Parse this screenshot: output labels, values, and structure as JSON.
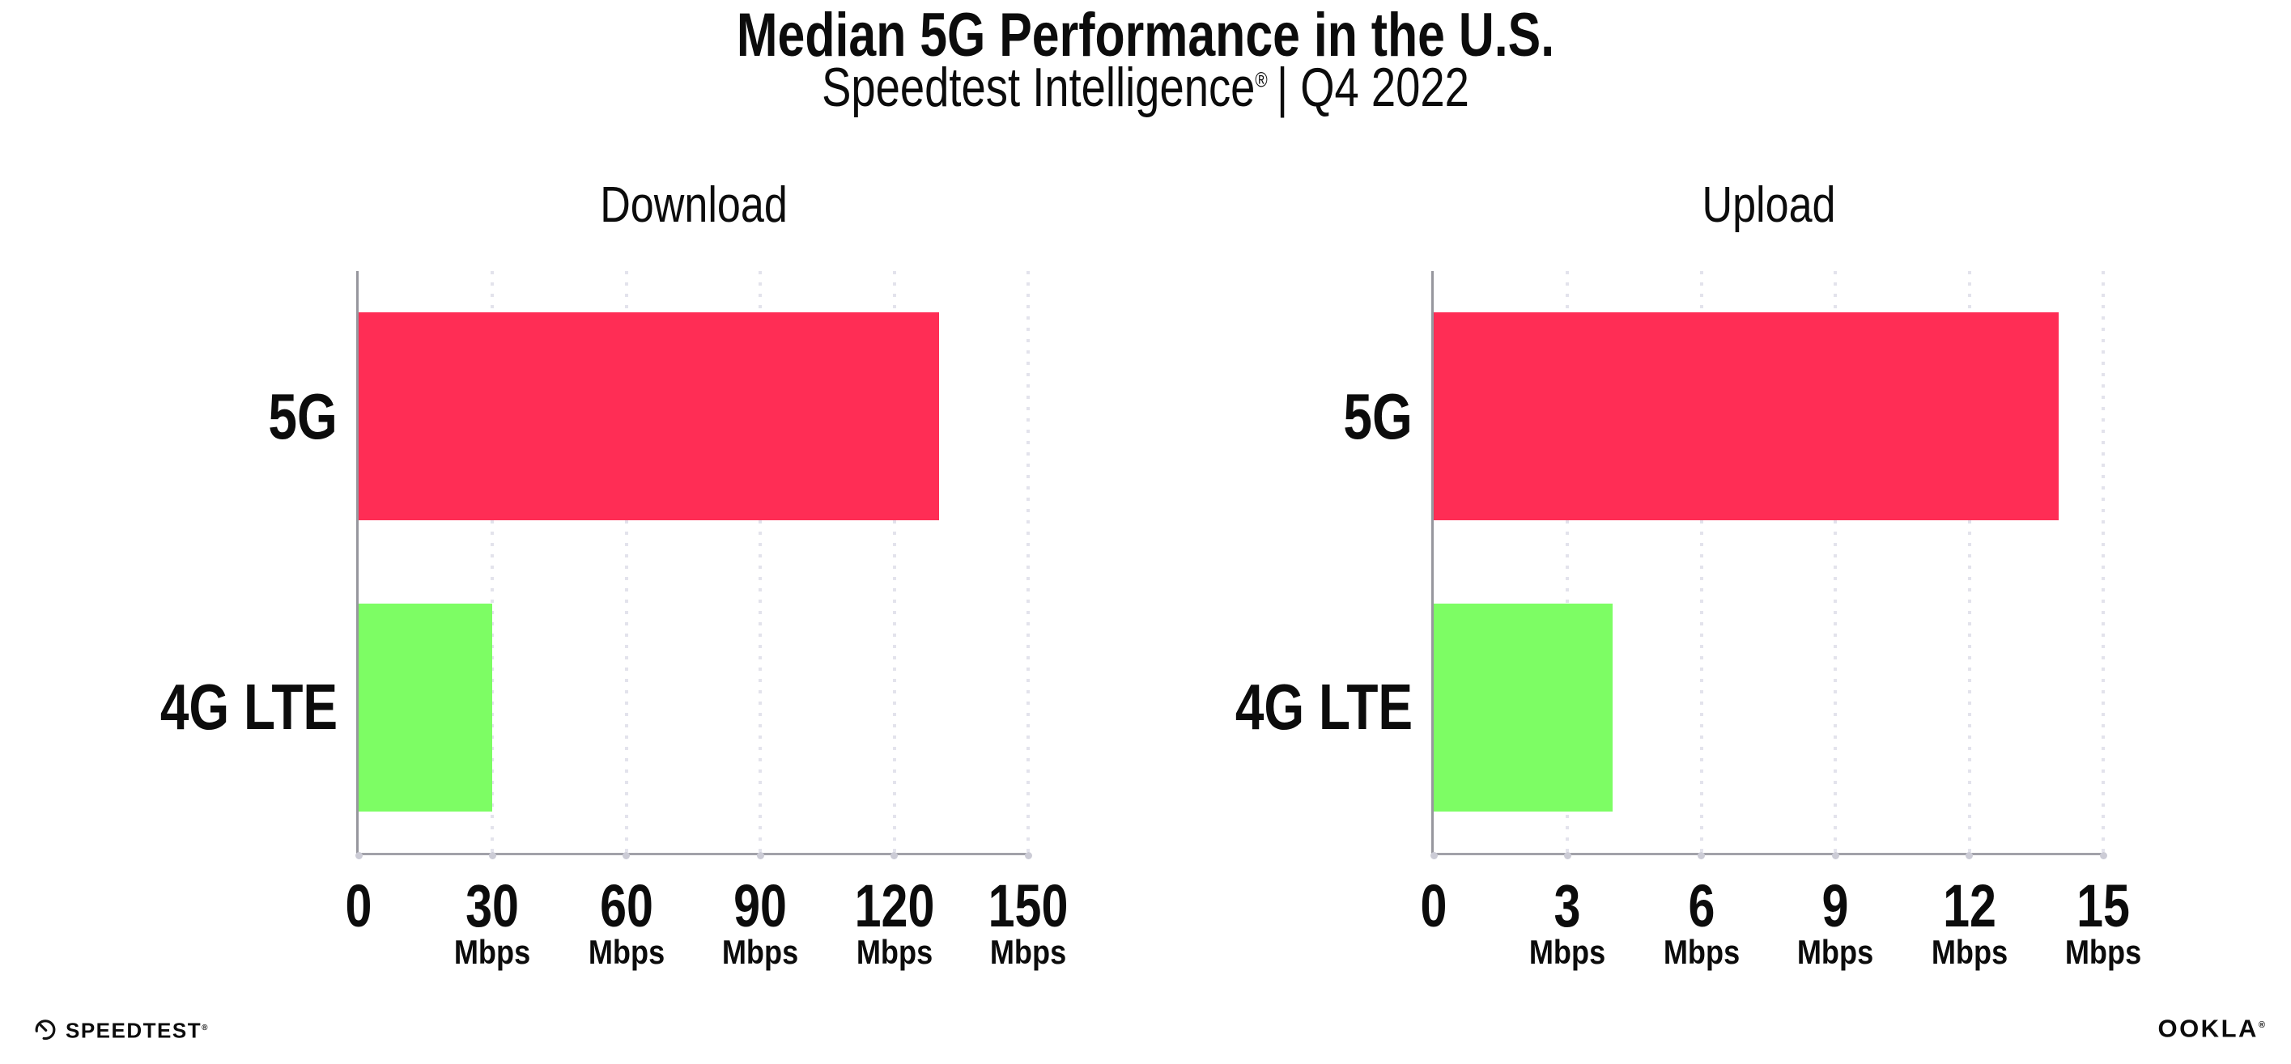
{
  "header": {
    "title": "Median 5G Performance in the U.S.",
    "subtitle_brand": "Speedtest Intelligence",
    "subtitle_reg": "®",
    "subtitle_rest": "| Q4 2022"
  },
  "chart_data": [
    {
      "type": "bar",
      "orientation": "horizontal",
      "title": "Download",
      "categories": [
        "5G",
        "4G LTE"
      ],
      "values": [
        130,
        30
      ],
      "unit": "Mbps",
      "xlim": [
        0,
        150
      ],
      "xticks": [
        0,
        30,
        60,
        90,
        120,
        150
      ],
      "bar_colors": [
        "#ff2d55",
        "#7dfd64"
      ],
      "grid": "vertical-dotted"
    },
    {
      "type": "bar",
      "orientation": "horizontal",
      "title": "Upload",
      "categories": [
        "5G",
        "4G LTE"
      ],
      "values": [
        14,
        4
      ],
      "unit": "Mbps",
      "xlim": [
        0,
        15
      ],
      "xticks": [
        0,
        3,
        6,
        9,
        12,
        15
      ],
      "bar_colors": [
        "#ff2d55",
        "#7dfd64"
      ],
      "grid": "vertical-dotted"
    }
  ],
  "colors": {
    "bar_5g": "#ff2d55",
    "bar_4g_lte": "#7dfd64",
    "axis": "#97979e",
    "gridline": "#e3e3ec",
    "text": "#0c0c0c"
  },
  "footer": {
    "speedtest_label": "SPEEDTEST",
    "speedtest_mark": "®",
    "ookla_label": "OOKLA",
    "ookla_mark": "®"
  }
}
